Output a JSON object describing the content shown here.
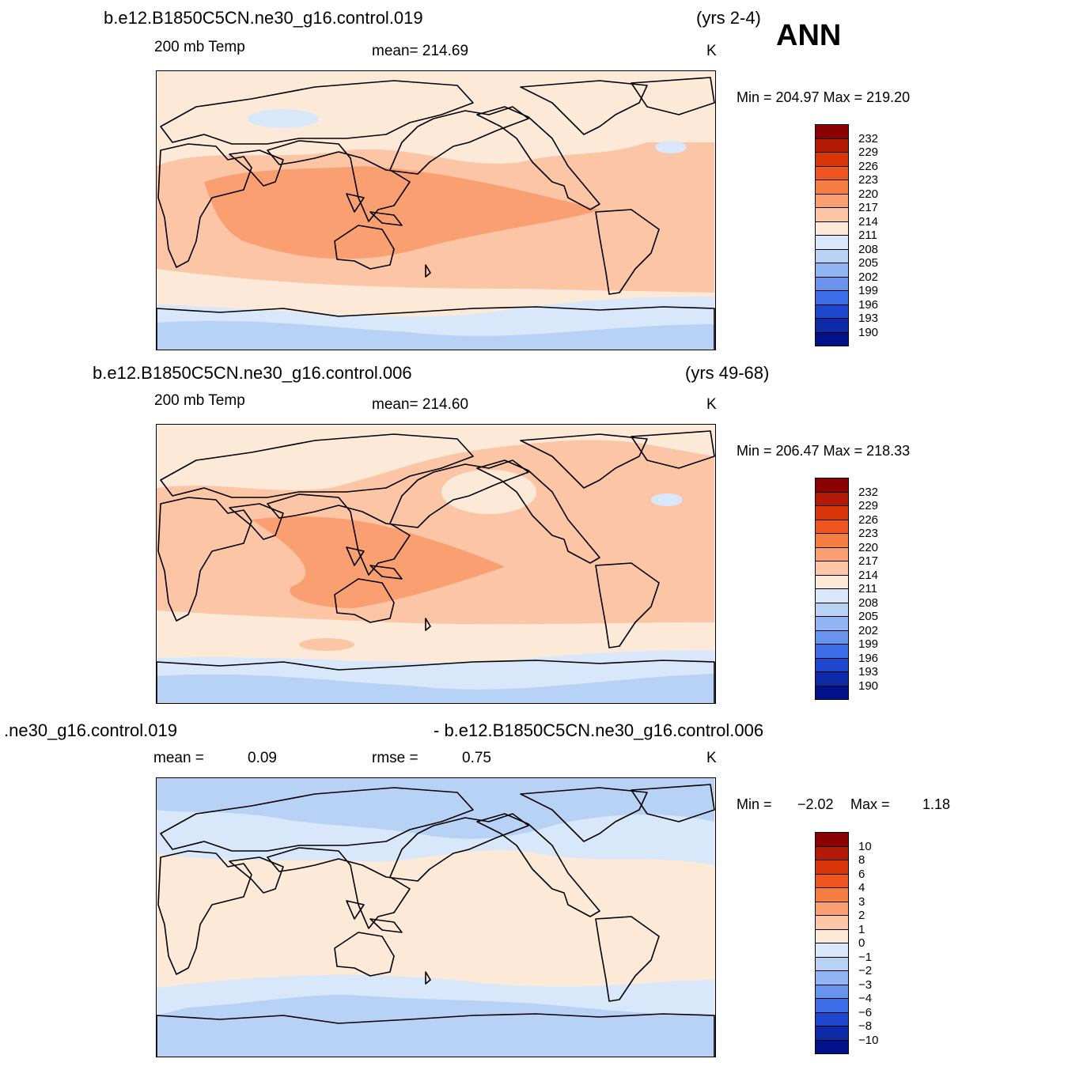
{
  "season": "ANN",
  "panels": [
    {
      "case_left": "b.e12.B1850C5CN.ne30_g16.control.019",
      "case_right": "(yrs 2-4)",
      "variable": "200 mb Temp",
      "stat": "mean= 214.69",
      "units": "K",
      "minmax": "Min = 204.97 Max = 219.20",
      "colorbar": {
        "levels": [
          "232",
          "229",
          "226",
          "223",
          "220",
          "217",
          "214",
          "211",
          "208",
          "205",
          "202",
          "199",
          "196",
          "193",
          "190"
        ],
        "colors": [
          "#8b0000",
          "#b31a06",
          "#d93508",
          "#f05420",
          "#f77e43",
          "#fa9f72",
          "#fcc5a6",
          "#fde9d8",
          "#d8e8fa",
          "#b8d2f6",
          "#91b4f2",
          "#6a93ee",
          "#3c6de7",
          "#1e47cf",
          "#0c2aa8",
          "#00118a"
        ]
      }
    },
    {
      "case_left": "b.e12.B1850C5CN.ne30_g16.control.006",
      "case_right": "(yrs 49-68)",
      "variable": "200 mb Temp",
      "stat": "mean= 214.60",
      "units": "K",
      "minmax": "Min = 206.47 Max = 218.33",
      "colorbar": {
        "levels": [
          "232",
          "229",
          "226",
          "223",
          "220",
          "217",
          "214",
          "211",
          "208",
          "205",
          "202",
          "199",
          "196",
          "193",
          "190"
        ],
        "colors": [
          "#8b0000",
          "#b31a06",
          "#d93508",
          "#f05420",
          "#f77e43",
          "#fa9f72",
          "#fcc5a6",
          "#fde9d8",
          "#d8e8fa",
          "#b8d2f6",
          "#91b4f2",
          "#6a93ee",
          "#3c6de7",
          "#1e47cf",
          "#0c2aa8",
          "#00118a"
        ]
      }
    },
    {
      "case_left": ".ne30_g16.control.019",
      "case_right": "- b.e12.B1850C5CN.ne30_g16.control.006",
      "mean_label": "mean =",
      "mean_value": "0.09",
      "rmse_label": "rmse =",
      "rmse_value": "0.75",
      "units": "K",
      "min_label": "Min =",
      "min_value": "−2.02",
      "max_label": "Max =",
      "max_value": "1.18",
      "colorbar": {
        "levels": [
          "10",
          "8",
          "6",
          "4",
          "3",
          "2",
          "1",
          "0",
          "−1",
          "−2",
          "−3",
          "−4",
          "−6",
          "−8",
          "−10"
        ],
        "colors": [
          "#8b0000",
          "#b31a06",
          "#d93508",
          "#f05420",
          "#f77e43",
          "#fa9f72",
          "#fcc5a6",
          "#fde9d8",
          "#d8e8fa",
          "#b8d2f6",
          "#91b4f2",
          "#6a93ee",
          "#3c6de7",
          "#1e47cf",
          "#0c2aa8",
          "#00118a"
        ]
      }
    }
  ]
}
